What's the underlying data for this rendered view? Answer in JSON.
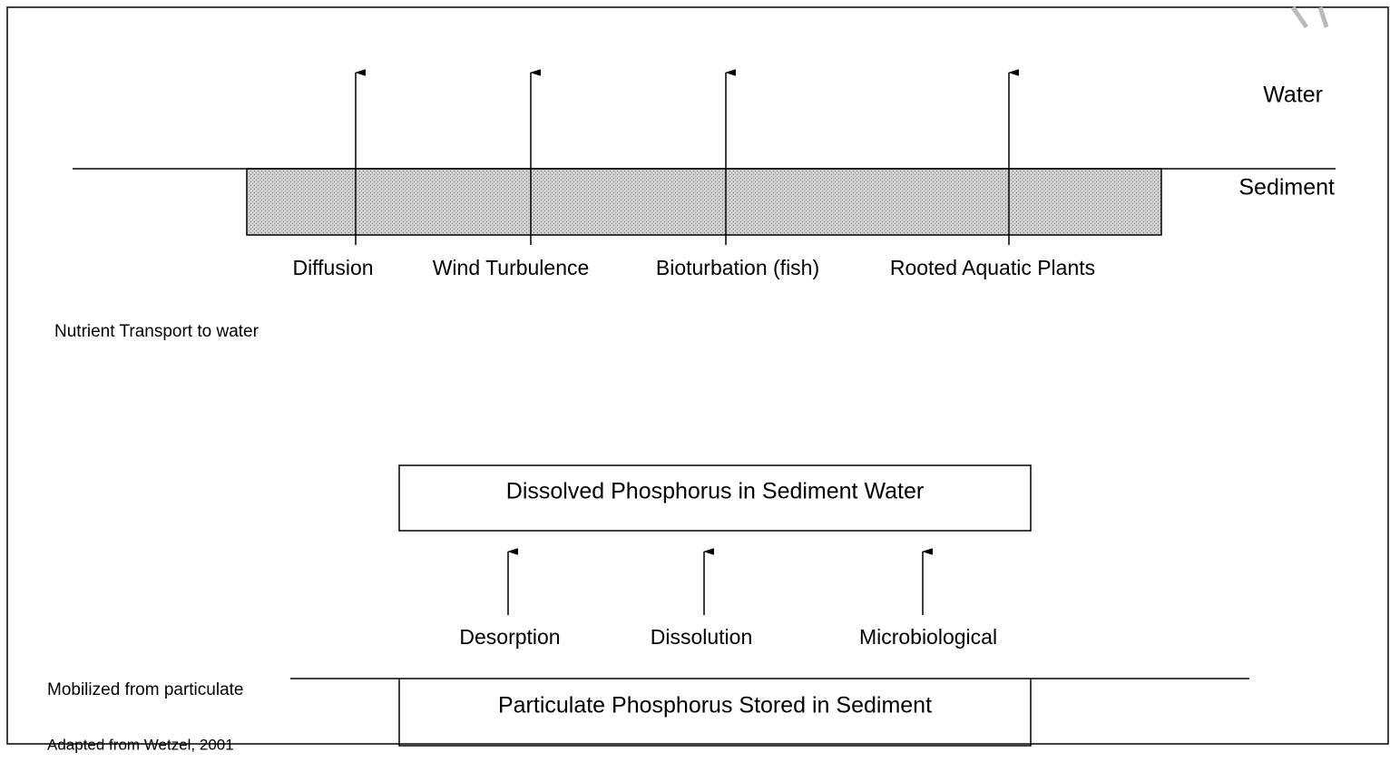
{
  "layers": {
    "water": "Water",
    "sediment": "Sediment"
  },
  "transport_processes": [
    "Diffusion",
    "Wind Turbulence",
    "Bioturbation (fish)",
    "Rooted Aquatic Plants"
  ],
  "transport_caption": "Nutrient Transport to water",
  "dissolved_box": "Dissolved Phosphorus in Sediment Water",
  "mobilization_processes": [
    "Desorption",
    "Dissolution",
    "Microbiological"
  ],
  "particulate_box": "Particulate Phosphorus Stored in Sediment",
  "mobilized_caption": "Mobilized from particulate",
  "source": "Adapted from Wetzel, 2001"
}
